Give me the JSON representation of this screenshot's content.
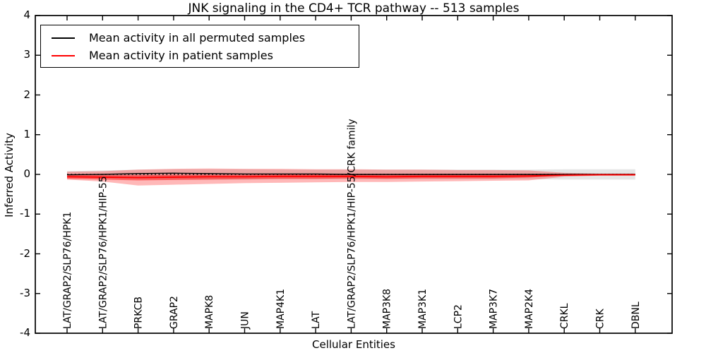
{
  "title": "JNK signaling in the CD4+ TCR pathway -- 513 samples",
  "axes": {
    "xlabel": "Cellular Entities",
    "ylabel": "Inferred Activity"
  },
  "legend": {
    "position": "upper left",
    "entries": [
      {
        "label": "Mean activity in all permuted samples",
        "color": "#000000"
      },
      {
        "label": "Mean activity in patient samples",
        "color": "#ff0000"
      }
    ]
  },
  "chart_data": {
    "type": "line",
    "title": "JNK signaling in the CD4+ TCR pathway -- 513 samples",
    "xlabel": "Cellular Entities",
    "ylabel": "Inferred Activity",
    "ylim": [
      -4,
      4
    ],
    "yticks": [
      4,
      3,
      2,
      1,
      0,
      -1,
      -2,
      -3,
      -4
    ],
    "grid": false,
    "legend_position": "upper left",
    "categories": [
      "LAT/GRAP2/SLP76/HPK1",
      "LAT/GRAP2/SLP76/HPK1/HIP-55",
      "PRKCB",
      "GRAP2",
      "MAPK8",
      "JUN",
      "MAP4K1",
      "LAT",
      "LAT/GRAP2/SLP76/HPK1/HIP-55/CRK family",
      "MAP3K8",
      "MAP3K1",
      "LCP2",
      "MAP3K7",
      "MAP2K4",
      "CRKL",
      "CRK",
      "DBNL"
    ],
    "series": [
      {
        "id": "permuted-mean",
        "name": "Mean activity in all permuted samples",
        "color": "#000000",
        "style": "solid",
        "width": 1.4,
        "values": [
          -0.01,
          0.0,
          0.02,
          0.03,
          0.02,
          0.01,
          0.01,
          0.01,
          0.0,
          0.0,
          0.0,
          0.0,
          0.0,
          0.0,
          0.0,
          0.0,
          0.0
        ]
      },
      {
        "id": "patient-mean",
        "name": "Mean activity in patient samples",
        "color": "#ff0000",
        "style": "solid",
        "width": 1.8,
        "values": [
          -0.06,
          -0.07,
          -0.08,
          -0.07,
          -0.06,
          -0.06,
          -0.05,
          -0.05,
          -0.05,
          -0.06,
          -0.05,
          -0.05,
          -0.05,
          -0.04,
          -0.02,
          -0.01,
          -0.01
        ]
      }
    ],
    "reference_line": {
      "y": 0,
      "style": "dotted",
      "color": "#000000"
    },
    "bands": [
      {
        "id": "permuted-std",
        "name": "Permuted samples spread",
        "color": "rgba(0,0,0,0.10)",
        "upper": [
          0.08,
          0.1,
          0.12,
          0.13,
          0.13,
          0.13,
          0.12,
          0.12,
          0.12,
          0.12,
          0.12,
          0.12,
          0.12,
          0.12,
          0.13,
          0.13,
          0.13
        ],
        "lower": [
          -0.08,
          -0.1,
          -0.12,
          -0.13,
          -0.13,
          -0.13,
          -0.12,
          -0.12,
          -0.12,
          -0.12,
          -0.12,
          -0.12,
          -0.12,
          -0.12,
          -0.13,
          -0.13,
          -0.13
        ]
      },
      {
        "id": "patient-spread-outer",
        "name": "Patient samples spread (outer)",
        "color": "rgba(255,0,0,0.28)",
        "upper": [
          0.07,
          0.08,
          0.12,
          0.14,
          0.15,
          0.14,
          0.14,
          0.13,
          0.13,
          0.12,
          0.12,
          0.11,
          0.11,
          0.1,
          0.04,
          0.02,
          0.02
        ],
        "lower": [
          -0.13,
          -0.18,
          -0.28,
          -0.26,
          -0.24,
          -0.22,
          -0.21,
          -0.2,
          -0.19,
          -0.19,
          -0.18,
          -0.17,
          -0.16,
          -0.15,
          -0.06,
          -0.03,
          -0.03
        ]
      },
      {
        "id": "patient-spread-inner",
        "name": "Patient samples spread (inner)",
        "color": "rgba(255,0,0,0.45)",
        "upper": [
          -0.01,
          -0.02,
          -0.02,
          -0.01,
          -0.01,
          -0.01,
          0.0,
          0.0,
          0.0,
          -0.01,
          0.0,
          0.0,
          0.0,
          0.0,
          -0.01,
          0.0,
          0.0
        ],
        "lower": [
          -0.11,
          -0.13,
          -0.15,
          -0.14,
          -0.13,
          -0.12,
          -0.11,
          -0.11,
          -0.1,
          -0.11,
          -0.1,
          -0.1,
          -0.1,
          -0.08,
          -0.03,
          -0.02,
          -0.02
        ]
      }
    ]
  }
}
